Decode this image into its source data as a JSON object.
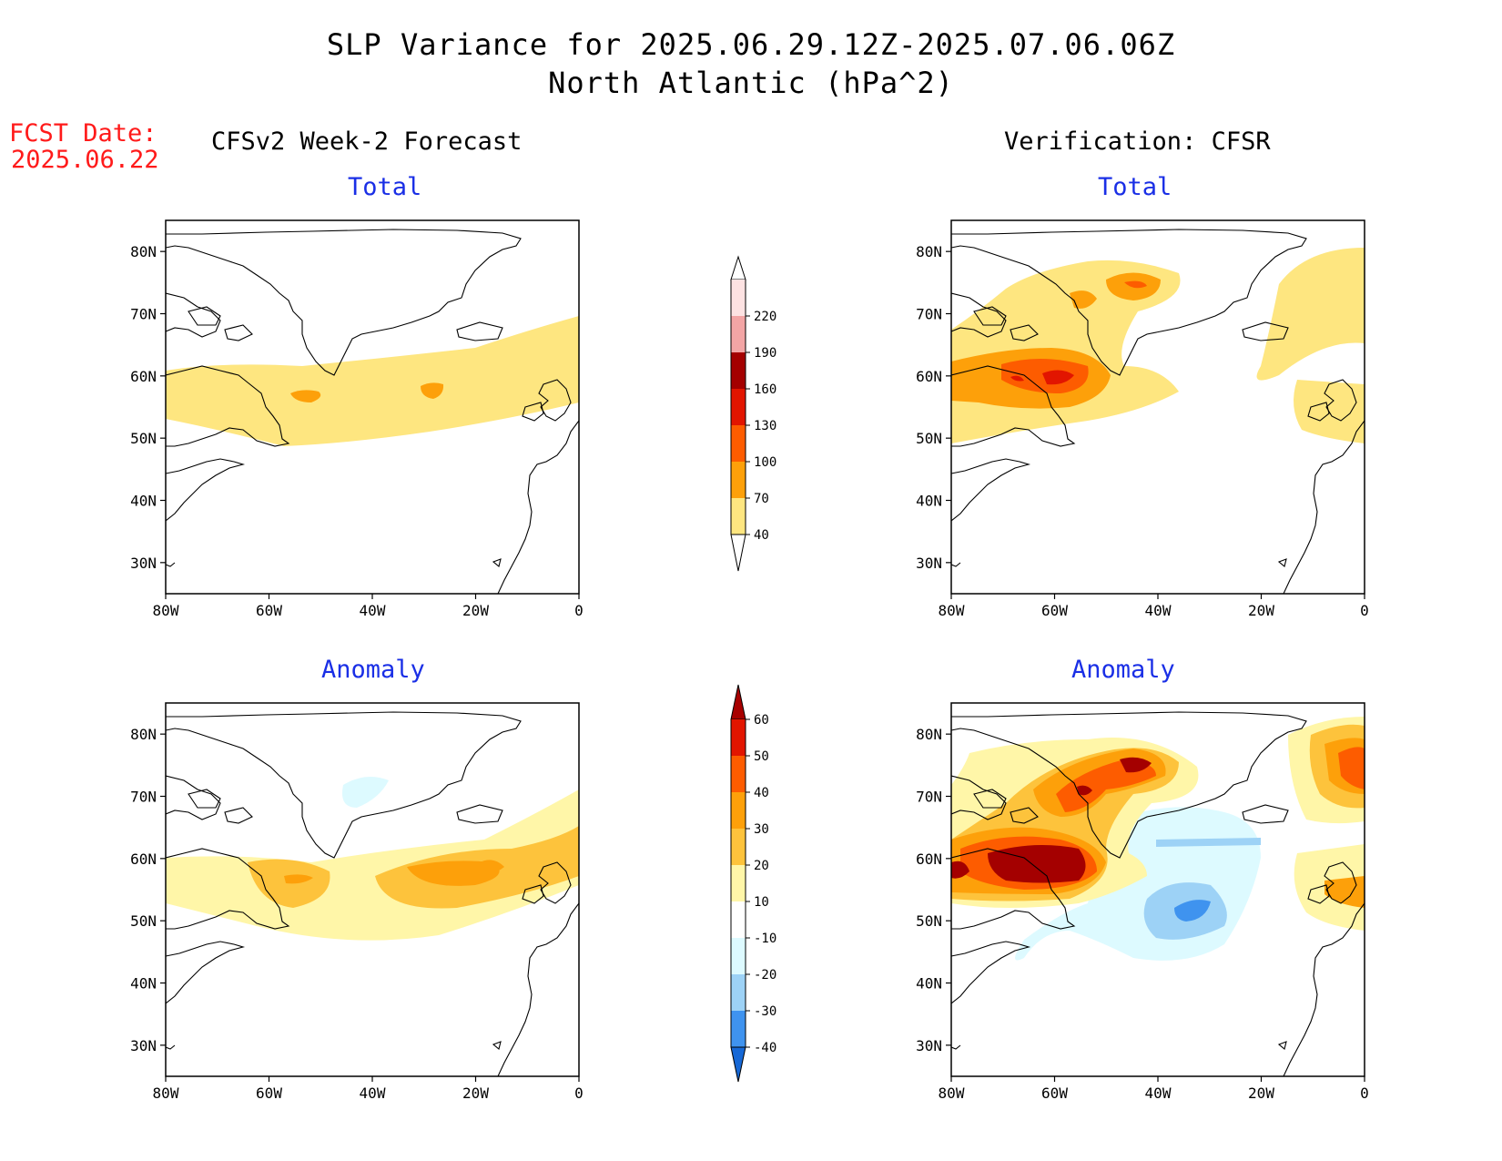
{
  "title_line1": "SLP Variance for 2025.06.29.12Z-2025.07.06.06Z",
  "title_line2": "North Atlantic (hPa^2)",
  "fcst_label": "FCST Date:",
  "fcst_date": "2025.06.22",
  "left_column_title": "CFSv2 Week-2 Forecast",
  "right_column_title": "Verification: CFSR",
  "row_titles": {
    "total": "Total",
    "anomaly": "Anomaly"
  },
  "map": {
    "lon_labels": [
      "80W",
      "60W",
      "40W",
      "20W",
      "0"
    ],
    "lat_labels": [
      "80N",
      "70N",
      "60N",
      "50N",
      "40N",
      "30N"
    ],
    "lon_range": [
      -80,
      0
    ],
    "lat_range": [
      25,
      85
    ]
  },
  "colorbars": {
    "total": {
      "levels": [
        "40",
        "70",
        "100",
        "130",
        "160",
        "190",
        "220"
      ],
      "colors": [
        "#fee680",
        "#fda00a",
        "#fd5c00",
        "#e21500",
        "#a40000",
        "#f3a5a5",
        "#fde2e2"
      ]
    },
    "anomaly": {
      "levels": [
        "60",
        "50",
        "40",
        "30",
        "20",
        "10",
        "-10",
        "-20",
        "-30",
        "-40"
      ],
      "colors_top_to_bottom": [
        "#a80000",
        "#e21500",
        "#fd5c00",
        "#fda00a",
        "#fdc33c",
        "#fff6a8",
        "#ffffff",
        "#ddfaff",
        "#9dd2f6",
        "#3f93ef",
        "#1668d6"
      ]
    }
  },
  "colors": {
    "yellow": "#fee680",
    "orange": "#fda00a",
    "red_orange": "#fd5c00",
    "red": "#e21500",
    "dark_red": "#a40000",
    "light_yellow": "#fff6a8",
    "light_orange": "#fdc33c",
    "light_blue": "#ddfaff",
    "mid_blue": "#9dd2f6",
    "blue": "#3f93ef",
    "title_blue": "#1a2fe6",
    "fcst_red": "#ff1a1a"
  }
}
